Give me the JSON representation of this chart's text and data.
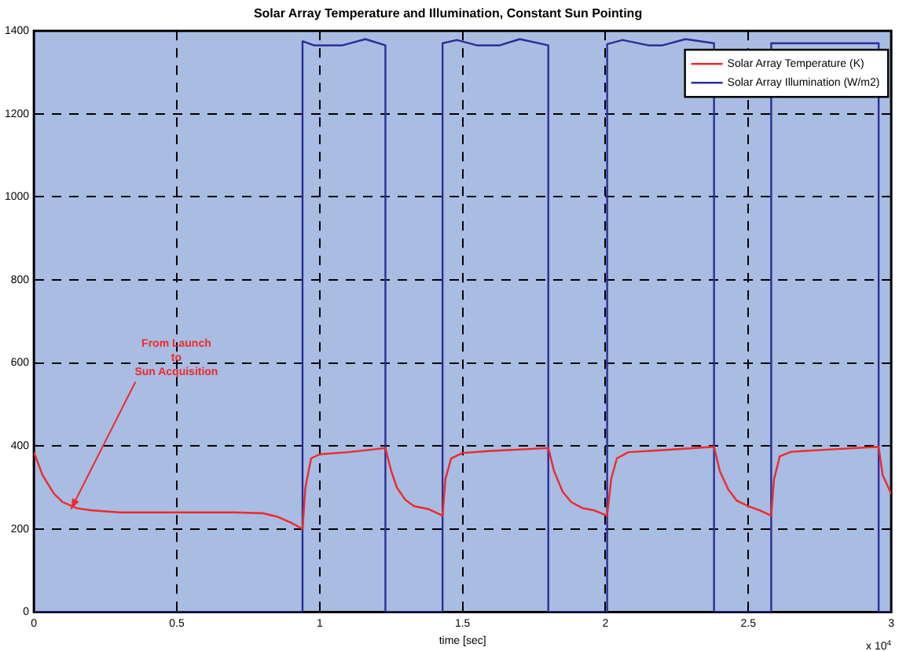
{
  "chart_data": {
    "type": "line",
    "title": "Solar Array Temperature and Illumination, Constant Sun Pointing",
    "xlabel": "time [sec]",
    "xlim": [
      0,
      3
    ],
    "xticks": [
      0,
      0.5,
      1,
      1.5,
      2,
      2.5,
      3
    ],
    "ylim": [
      0,
      1400
    ],
    "yticks": [
      0,
      200,
      400,
      600,
      800,
      1000,
      1200,
      1400
    ],
    "grid": true,
    "legend": "top right",
    "line_style": "solid",
    "marker": "none",
    "annotations": [
      {
        "text": "From Launch\nto\nSun Acquisition",
        "x": 0.13,
        "y": 248
      },
      "x 10$^{4}$"
    ],
    "series": [
      {
        "name": "Solar Array Temperature (K)",
        "color": "#ee2a2a",
        "x": [
          0,
          0.03,
          0.07,
          0.1,
          0.15,
          0.2,
          0.3,
          0.5,
          0.7,
          0.8,
          0.85,
          0.9,
          0.94,
          0.95,
          0.97,
          1.0,
          1.1,
          1.23,
          1.25,
          1.27,
          1.3,
          1.33,
          1.38,
          1.43,
          1.44,
          1.46,
          1.5,
          1.6,
          1.8,
          1.82,
          1.85,
          1.88,
          1.92,
          1.96,
          2.006,
          2.02,
          2.04,
          2.08,
          2.2,
          2.38,
          2.4,
          2.43,
          2.46,
          2.5,
          2.54,
          2.58,
          2.59,
          2.61,
          2.65,
          2.8,
          2.956,
          2.97,
          3.0
        ],
        "values": [
          385,
          330,
          285,
          265,
          250,
          245,
          240,
          240,
          240,
          238,
          230,
          215,
          200,
          300,
          370,
          380,
          385,
          395,
          340,
          300,
          270,
          255,
          248,
          232,
          320,
          370,
          383,
          388,
          395,
          340,
          290,
          265,
          250,
          245,
          232,
          320,
          370,
          385,
          390,
          398,
          340,
          295,
          268,
          255,
          245,
          232,
          320,
          375,
          386,
          392,
          398,
          330,
          285
        ]
      },
      {
        "name": "Solar Array Illumination (W/m2)",
        "color": "#2a2f96",
        "x": [
          0,
          0.94,
          0.94,
          0.98,
          1.08,
          1.16,
          1.23,
          1.23,
          1.43,
          1.43,
          1.48,
          1.55,
          1.63,
          1.7,
          1.8,
          1.8,
          2.006,
          2.006,
          2.06,
          2.15,
          2.2,
          2.28,
          2.38,
          2.38,
          2.58,
          2.58,
          2.956,
          2.956,
          3.0
        ],
        "values": [
          0,
          0,
          1375,
          1365,
          1365,
          1380,
          1365,
          0,
          0,
          1370,
          1378,
          1365,
          1365,
          1380,
          1365,
          0,
          0,
          1368,
          1378,
          1365,
          1365,
          1380,
          1370,
          0,
          0,
          1370,
          1370,
          0,
          0
        ]
      }
    ]
  }
}
